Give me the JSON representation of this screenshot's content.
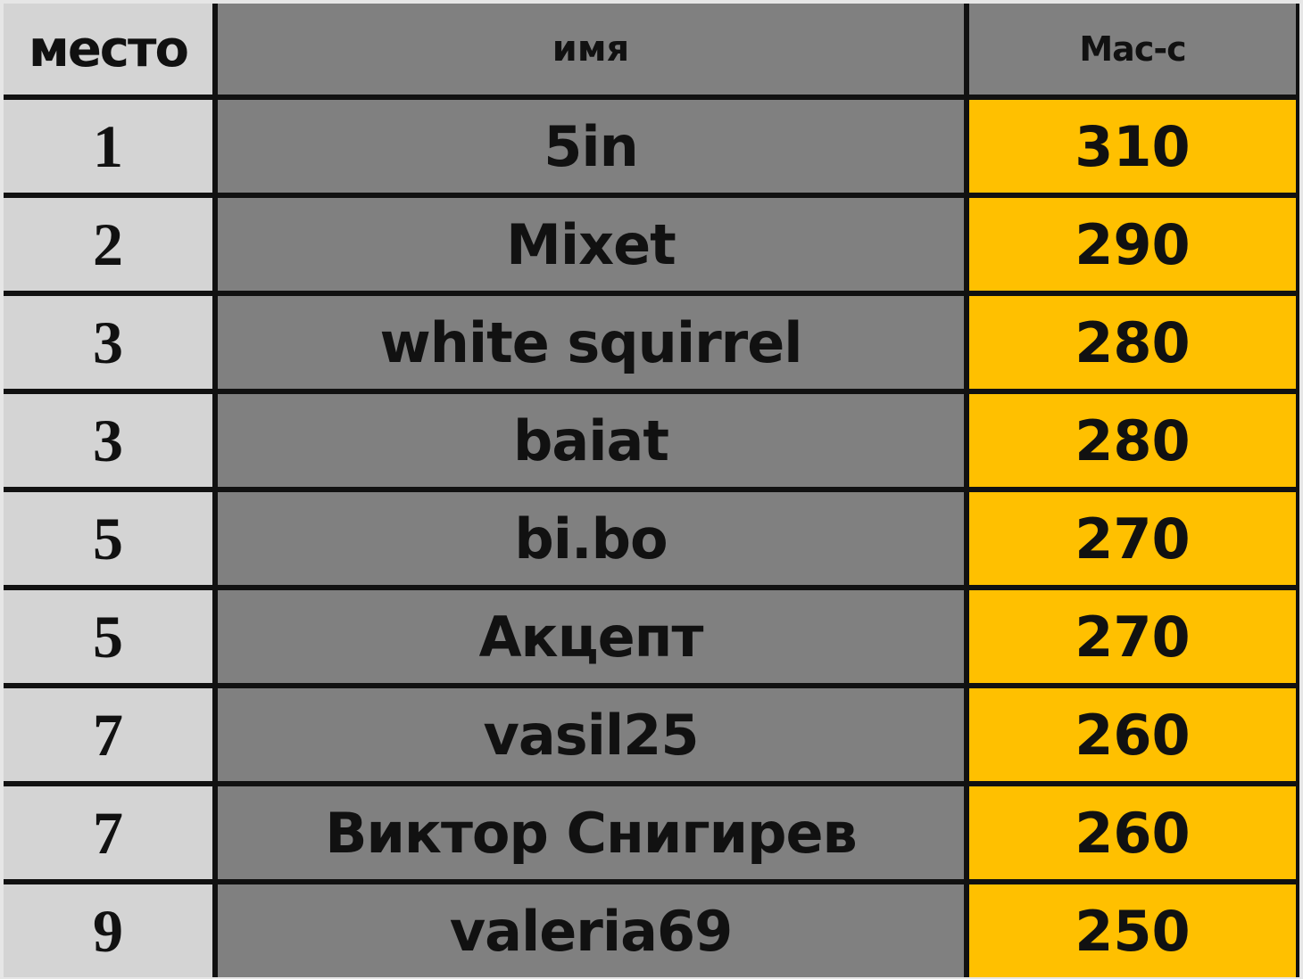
{
  "headers": {
    "place": "место",
    "name": "имя",
    "score": "Mac-c"
  },
  "colors": {
    "place_bg": "#d4d4d4",
    "name_bg": "#808080",
    "score_bg": "#ffc000",
    "border": "#111111"
  },
  "rows": [
    {
      "place": "1",
      "name": "5in",
      "score": "310"
    },
    {
      "place": "2",
      "name": "Mixet",
      "score": "290"
    },
    {
      "place": "3",
      "name": "white squirrel",
      "score": "280"
    },
    {
      "place": "3",
      "name": "baiat",
      "score": "280"
    },
    {
      "place": "5",
      "name": "bi.bo",
      "score": "270"
    },
    {
      "place": "5",
      "name": "Акцепт",
      "score": "270"
    },
    {
      "place": "7",
      "name": "vasil25",
      "score": "260"
    },
    {
      "place": "7",
      "name": "Виктор Снигирев",
      "score": "260"
    },
    {
      "place": "9",
      "name": "valeria69",
      "score": "250"
    }
  ]
}
